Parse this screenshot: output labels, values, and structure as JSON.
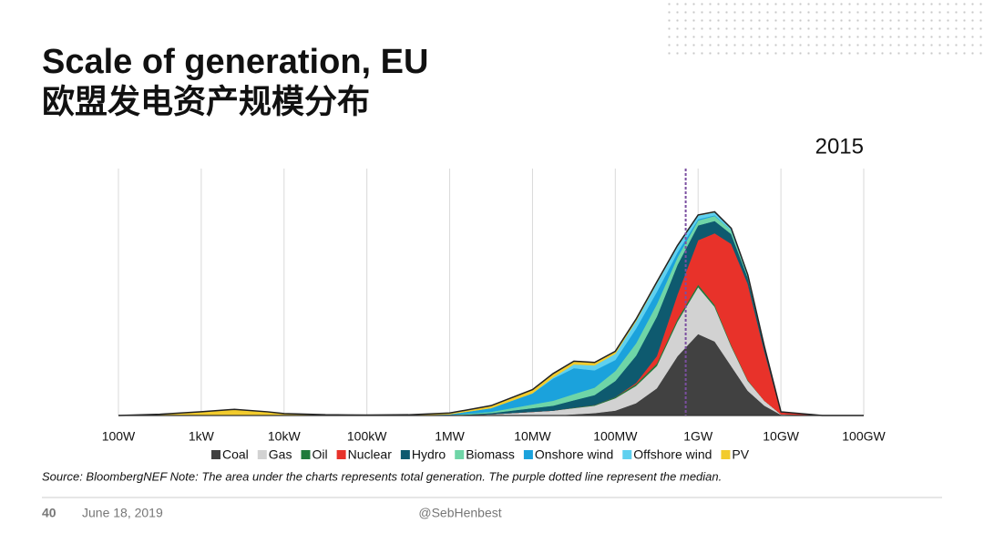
{
  "chart_data": {
    "type": "stacked_area",
    "title": "Scale of generation, EU",
    "subtitle": "欧盟发电资产规模分布",
    "year": "2015",
    "note": "Source: BloombergNEF  Note: The area under the charts represents total generation. The purple dotted line represent the median.",
    "page_number": "40",
    "date": "June 18, 2019",
    "author": "@SebHenbest",
    "log_x": true,
    "grid": true,
    "xlim": [
      100,
      100000000000
    ],
    "ylim": [
      0,
      100
    ],
    "xticks": [
      {
        "value": 100,
        "label": "100W"
      },
      {
        "value": 1000,
        "label": "1kW"
      },
      {
        "value": 10000,
        "label": "10kW"
      },
      {
        "value": 100000,
        "label": "100kW"
      },
      {
        "value": 1000000,
        "label": "1MW"
      },
      {
        "value": 10000000,
        "label": "10MW"
      },
      {
        "value": 100000000,
        "label": "100MW"
      },
      {
        "value": 1000000000,
        "label": "1GW"
      },
      {
        "value": 10000000000,
        "label": "10GW"
      },
      {
        "value": 100000000000,
        "label": "100GW"
      }
    ],
    "median": 708000000,
    "median_color": "#7b4fa0",
    "x": [
      100,
      316,
      1000,
      2512,
      6310,
      10000,
      31623,
      100000,
      316228,
      1000000,
      3162278,
      10000000,
      17782794,
      31622777,
      56234133,
      100000000,
      177827941,
      316227766,
      562341325,
      1000000000,
      1584893192,
      2511886432,
      3981071706,
      6309573445,
      10000000000,
      31622776602,
      100000000000
    ],
    "series": [
      {
        "name": "Coal",
        "color": "#414141",
        "values": [
          0,
          0,
          0,
          0,
          0,
          0,
          0,
          0,
          0,
          0,
          0,
          0,
          0,
          0.5,
          1,
          2,
          5,
          11,
          24,
          33,
          30,
          20,
          10,
          4,
          0.3,
          0,
          0
        ]
      },
      {
        "name": "Gas",
        "color": "#d2d2d2",
        "values": [
          0,
          0,
          0,
          0,
          0,
          0,
          0,
          0,
          0,
          0,
          0.5,
          1.5,
          2,
          2.5,
          3,
          5,
          7,
          9,
          14,
          19,
          14,
          8,
          4,
          2,
          0.2,
          0,
          0
        ]
      },
      {
        "name": "Oil",
        "color": "#1f7a3b",
        "values": [
          0,
          0,
          0,
          0,
          0,
          0,
          0,
          0,
          0,
          0,
          0,
          0,
          0,
          0.2,
          0.3,
          0.5,
          0.7,
          1,
          1,
          1,
          0.8,
          0.5,
          0.3,
          0,
          0,
          0,
          0
        ]
      },
      {
        "name": "Nuclear",
        "color": "#e8322a",
        "values": [
          0,
          0,
          0,
          0,
          0,
          0,
          0,
          0,
          0,
          0,
          0,
          0,
          0,
          0,
          0,
          0,
          0.5,
          3,
          10,
          18,
          29,
          41,
          39,
          20,
          0.8,
          0,
          0
        ]
      },
      {
        "name": "Hydro",
        "color": "#0e5a6f",
        "values": [
          0,
          0,
          0,
          0,
          0,
          0,
          0,
          0,
          0,
          0,
          0.5,
          1.5,
          2,
          3,
          4,
          6.5,
          11,
          16,
          12,
          6,
          5,
          4,
          2.5,
          1.5,
          0.2,
          0,
          0
        ]
      },
      {
        "name": "Biomass",
        "color": "#6fd5a7",
        "values": [
          0,
          0,
          0,
          0,
          0,
          0,
          0,
          0,
          0,
          0.2,
          0.5,
          1.5,
          2,
          2.5,
          3,
          4,
          5,
          5,
          3,
          2,
          2,
          1.5,
          0.8,
          0.5,
          0,
          0,
          0
        ]
      },
      {
        "name": "Onshore wind",
        "color": "#1ba2dc",
        "values": [
          0,
          0,
          0,
          0,
          0,
          0,
          0,
          0,
          0,
          0.3,
          1.5,
          4.5,
          9,
          10.5,
          7,
          4.5,
          6,
          5,
          2,
          0.5,
          0.3,
          0,
          0,
          0,
          0,
          0,
          0
        ]
      },
      {
        "name": "Offshore wind",
        "color": "#5fd0ef",
        "values": [
          0,
          0,
          0,
          0,
          0,
          0,
          0,
          0,
          0,
          0,
          0,
          0,
          0.5,
          1.5,
          2,
          2.5,
          3,
          3.5,
          2.5,
          1.5,
          1.2,
          0.8,
          0.4,
          0,
          0,
          0,
          0
        ]
      },
      {
        "name": "PV",
        "color": "#f2cb2c",
        "values": [
          0,
          0.5,
          1.5,
          2.5,
          1.5,
          0.8,
          0.3,
          0.2,
          0.3,
          0.5,
          1,
          1.5,
          1.5,
          1.3,
          1.2,
          1,
          0.8,
          0.5,
          0.3,
          0.2,
          0.2,
          0,
          0,
          0,
          0,
          0,
          0
        ]
      }
    ]
  }
}
